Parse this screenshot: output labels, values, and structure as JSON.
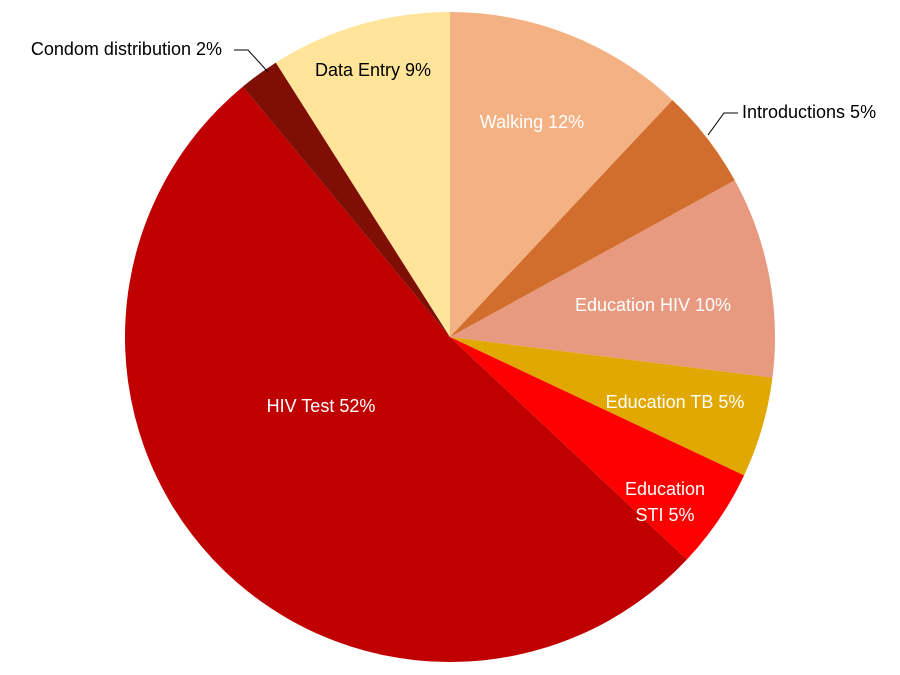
{
  "chart_data": {
    "type": "pie",
    "title": "",
    "slices": [
      {
        "label": "Walking",
        "value": 12,
        "display": "Walking  12%",
        "color": "#F4B183"
      },
      {
        "label": "Introductions",
        "value": 5,
        "display": "Introductions 5%",
        "color": "#D26E2D"
      },
      {
        "label": "Education HIV",
        "value": 10,
        "display": "Education HIV  10%",
        "color": "#E89A80"
      },
      {
        "label": "Education TB",
        "value": 5,
        "display": "Education TB  5%",
        "color": "#E0A800"
      },
      {
        "label": "Education STI",
        "value": 5,
        "display": "Education|STI  5%",
        "color": "#FF0000"
      },
      {
        "label": "HIV Test",
        "value": 52,
        "display": "HIV Test  52%",
        "color": "#C00000"
      },
      {
        "label": "Condom distribution",
        "value": 2,
        "display": "Condom distribution 2%",
        "color": "#7F0F05"
      },
      {
        "label": "Data Entry",
        "value": 9,
        "display": "Data Entry  9%",
        "color": "#FFE499"
      }
    ],
    "start": "12 o'clock",
    "direction": "clockwise",
    "legend": "none"
  }
}
